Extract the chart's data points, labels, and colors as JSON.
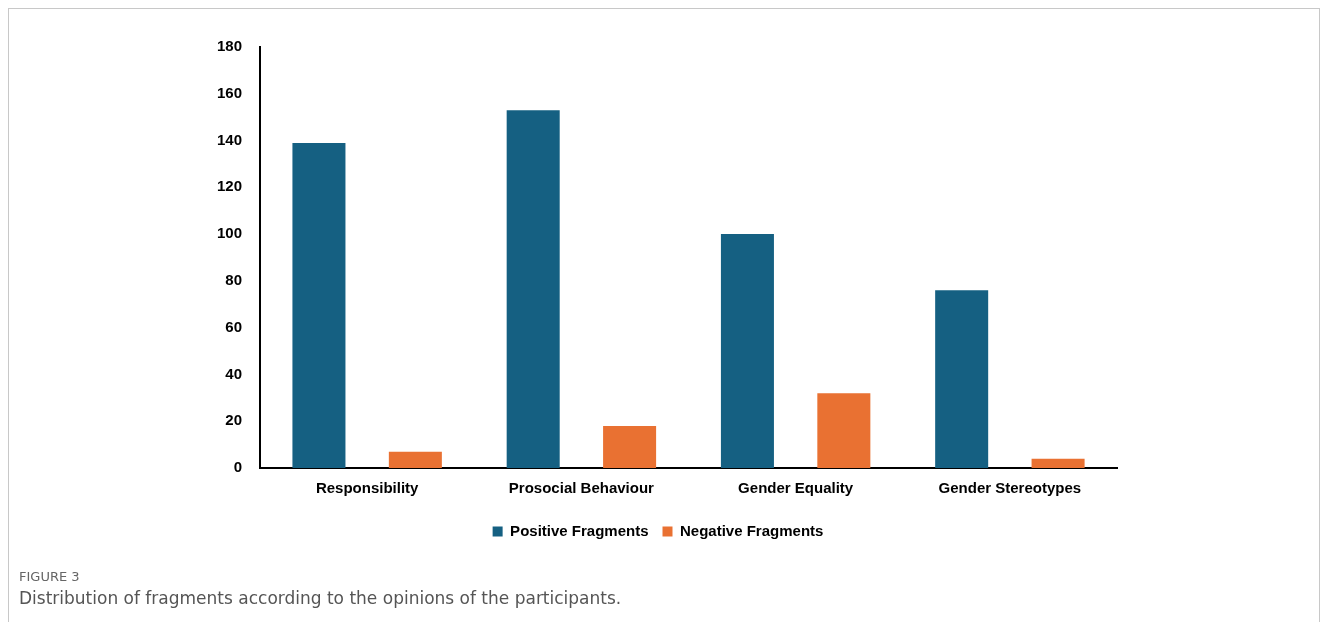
{
  "chart_data": {
    "type": "bar",
    "categories": [
      "Responsibility",
      "Prosocial Behaviour",
      "Gender Equality",
      "Gender Stereotypes"
    ],
    "series": [
      {
        "name": "Positive Fragments",
        "color": "#156082",
        "values": [
          139,
          153,
          100,
          76
        ]
      },
      {
        "name": "Negative Fragments",
        "color": "#e97132",
        "values": [
          7,
          18,
          32,
          4
        ]
      }
    ],
    "ylim": [
      0,
      180
    ],
    "yticks": [
      0,
      20,
      40,
      60,
      80,
      100,
      120,
      140,
      160,
      180
    ],
    "grid": false,
    "legend": "bottom",
    "annotations": [
      "FIGURE 3",
      "Distribution of fragments according to the opinions of the participants."
    ]
  }
}
